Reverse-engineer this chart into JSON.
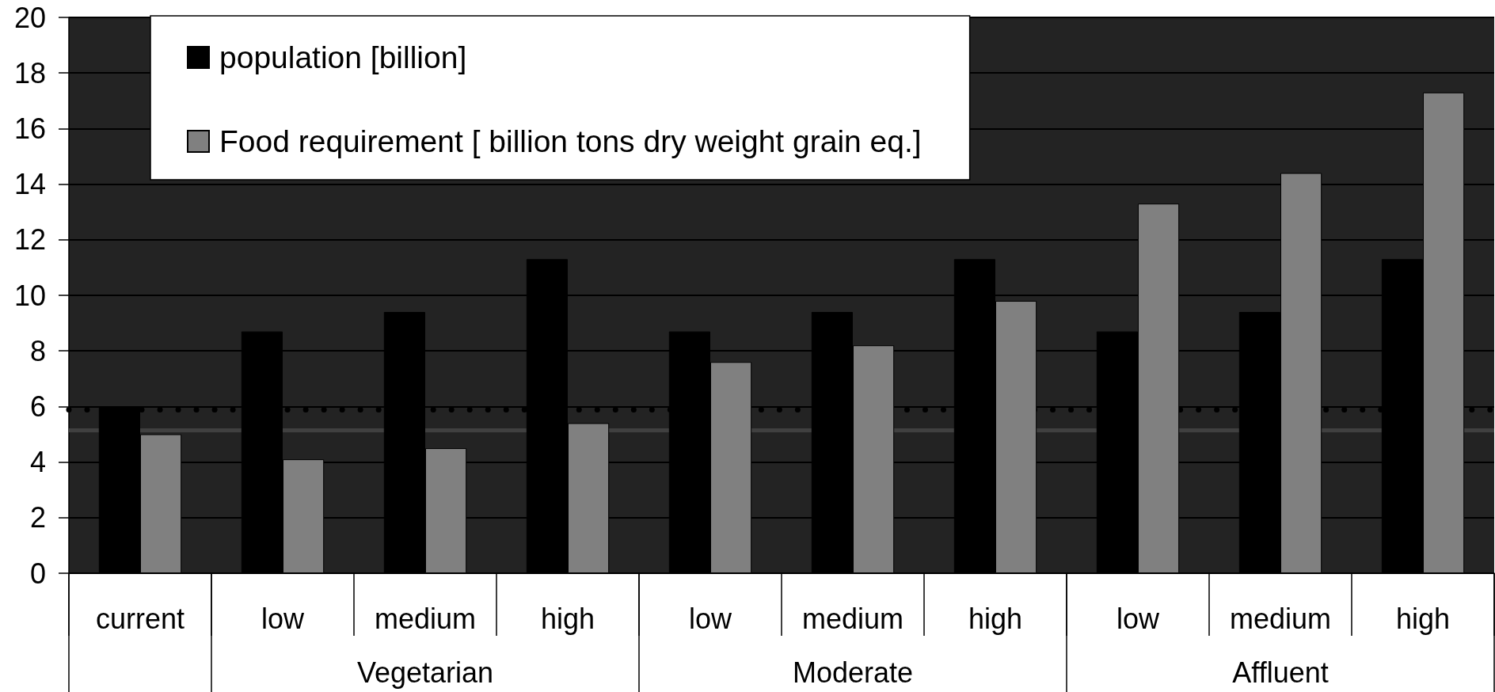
{
  "chart_data": {
    "type": "bar",
    "categories": [
      "current",
      "low",
      "medium",
      "high",
      "low",
      "medium",
      "high",
      "low",
      "medium",
      "high"
    ],
    "series": [
      {
        "name": "population [billion]",
        "color": "#000000",
        "values": [
          6.0,
          8.7,
          9.4,
          11.3,
          8.7,
          9.4,
          11.3,
          8.7,
          9.4,
          11.3
        ]
      },
      {
        "name": "Food requirement [ billion tons dry weight grain eq.]",
        "color": "#808080",
        "values": [
          5.0,
          4.1,
          4.5,
          5.4,
          7.6,
          8.2,
          9.8,
          13.3,
          14.4,
          17.3
        ]
      }
    ],
    "ylim": [
      0,
      20
    ],
    "yticks": [
      0,
      2,
      4,
      6,
      8,
      10,
      12,
      14,
      16,
      18,
      20
    ],
    "grid": "y",
    "legend": "top left",
    "ref_lines": [
      {
        "axis": "y",
        "value": 5.9,
        "color": "#000000",
        "line_style": "dotted"
      },
      {
        "axis": "y",
        "value": 5.15,
        "color": "#404040",
        "line_style": "solid"
      }
    ],
    "annotations": [
      "Vegetarian",
      "Moderate",
      "Affluent"
    ]
  }
}
